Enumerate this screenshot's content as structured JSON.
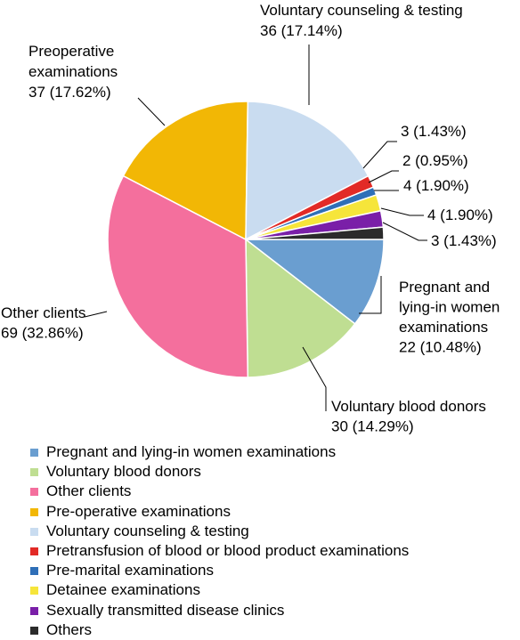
{
  "chart_data": {
    "type": "pie",
    "start_position": "3 o'clock, clockwise",
    "slices": [
      {
        "name": "Pregnant and lying-in women examinations",
        "value": 22,
        "percent": "10.48%",
        "color": "#6a9ed0",
        "label_lines": [
          "Pregnant and",
          "lying-in women",
          "examinations",
          "22 (10.48%)"
        ]
      },
      {
        "name": "Voluntary blood donors",
        "value": 30,
        "percent": "14.29%",
        "color": "#bfde92",
        "label_lines": [
          "Voluntary blood donors",
          "30 (14.29%)"
        ]
      },
      {
        "name": "Other clients",
        "value": 69,
        "percent": "32.86%",
        "color": "#f46f9d",
        "label_lines": [
          "Other clients",
          "69 (32.86%)"
        ]
      },
      {
        "name": "Pre-operative examinations",
        "value": 37,
        "percent": "17.62%",
        "color": "#f2b705",
        "label_lines": [
          "Preoperative",
          "examinations",
          "37 (17.62%)"
        ]
      },
      {
        "name": "Voluntary counseling & testing",
        "value": 36,
        "percent": "17.14%",
        "color": "#c9dcf0",
        "label_lines": [
          "Voluntary counseling & testing",
          "36 (17.14%)"
        ]
      },
      {
        "name": "Pretransfusion of blood or blood product examinations",
        "value": 3,
        "percent": "1.43%",
        "color": "#e22a26",
        "label_lines": [
          "3 (1.43%)"
        ]
      },
      {
        "name": "Pre-marital examinations",
        "value": 2,
        "percent": "0.95%",
        "color": "#2f6fb7",
        "label_lines": [
          "2 (0.95%)"
        ]
      },
      {
        "name": "Detainee examinations",
        "value": 4,
        "percent": "1.90%",
        "color": "#f6e53a",
        "label_lines": [
          "4 (1.90%)"
        ]
      },
      {
        "name": "Sexually transmitted disease clinics",
        "value": 4,
        "percent": "1.90%",
        "color": "#7a1fa8",
        "label_lines": [
          "4 (1.90%)"
        ]
      },
      {
        "name": "Others",
        "value": 3,
        "percent": "1.43%",
        "color": "#2b2b2b",
        "label_lines": [
          "3 (1.43%)"
        ]
      }
    ],
    "legend": [
      "Pregnant and lying-in women examinations",
      "Voluntary blood donors",
      "Other clients",
      "Pre-operative examinations",
      "Voluntary counseling & testing",
      "Pretransfusion of blood or blood product examinations",
      "Pre-marital examinations",
      "Detainee examinations",
      "Sexually transmitted disease clinics",
      "Others"
    ],
    "legend_position": "bottom-left"
  }
}
